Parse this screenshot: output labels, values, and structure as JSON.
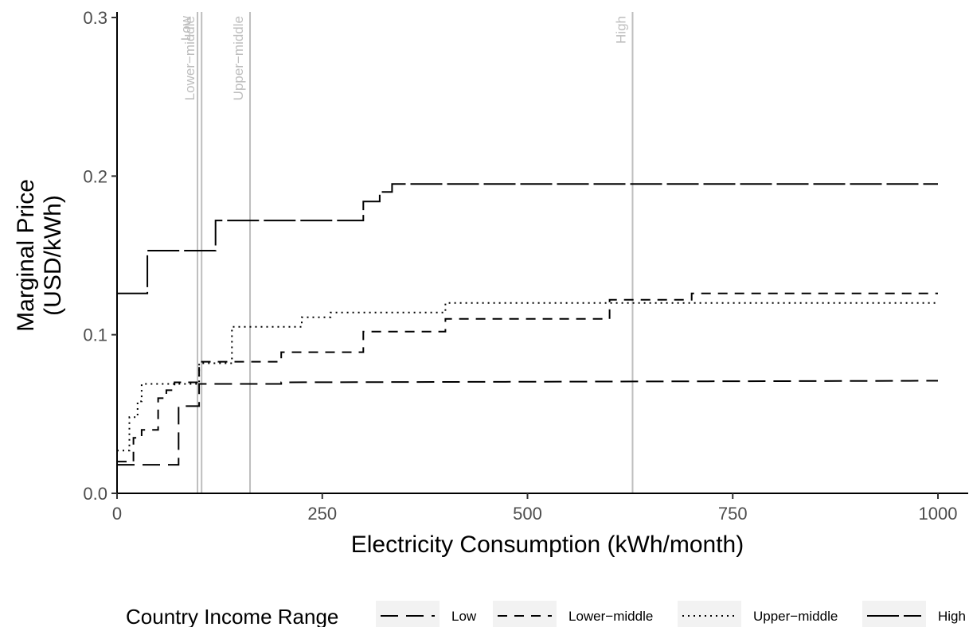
{
  "chart_data": {
    "type": "line",
    "step": true,
    "xlabel": "Electricity Consumption (kWh/month)",
    "ylabel_lines": [
      "Marginal Price",
      "(USD/kWh)"
    ],
    "xlim": [
      0,
      1000
    ],
    "ylim": [
      0,
      0.3
    ],
    "x_ticks": [
      0,
      250,
      500,
      750,
      1000
    ],
    "x_tick_labels": [
      "0",
      "250",
      "500",
      "750",
      "1000"
    ],
    "y_ticks": [
      0.0,
      0.1,
      0.2,
      0.3
    ],
    "y_tick_labels": [
      "0.0",
      "0.1",
      "0.2",
      "0.3"
    ],
    "grid": false,
    "legend": {
      "title": "Country Income Range",
      "position": "bottom"
    },
    "reference_lines": [
      {
        "label": "Low",
        "x": 98
      },
      {
        "label": "Lower−middle",
        "x": 103
      },
      {
        "label": "Upper−middle",
        "x": 162
      },
      {
        "label": "High",
        "x": 628
      }
    ],
    "series": [
      {
        "name": "Low",
        "dash": "long",
        "points": [
          [
            0,
            0.018
          ],
          [
            75,
            0.018
          ],
          [
            75,
            0.055
          ],
          [
            100,
            0.055
          ],
          [
            100,
            0.069
          ],
          [
            200,
            0.069
          ],
          [
            200,
            0.07
          ],
          [
            1000,
            0.071
          ]
        ]
      },
      {
        "name": "Lower−middle",
        "dash": "short",
        "points": [
          [
            0,
            0.02
          ],
          [
            20,
            0.02
          ],
          [
            20,
            0.035
          ],
          [
            30,
            0.035
          ],
          [
            30,
            0.04
          ],
          [
            50,
            0.04
          ],
          [
            50,
            0.06
          ],
          [
            60,
            0.06
          ],
          [
            60,
            0.065
          ],
          [
            70,
            0.065
          ],
          [
            70,
            0.07
          ],
          [
            100,
            0.07
          ],
          [
            100,
            0.083
          ],
          [
            200,
            0.083
          ],
          [
            200,
            0.089
          ],
          [
            300,
            0.089
          ],
          [
            300,
            0.102
          ],
          [
            400,
            0.102
          ],
          [
            400,
            0.11
          ],
          [
            600,
            0.11
          ],
          [
            600,
            0.122
          ],
          [
            700,
            0.122
          ],
          [
            700,
            0.126
          ],
          [
            1000,
            0.126
          ]
        ]
      },
      {
        "name": "Upper−middle",
        "dash": "dotted",
        "points": [
          [
            0,
            0.027
          ],
          [
            15,
            0.027
          ],
          [
            15,
            0.048
          ],
          [
            25,
            0.048
          ],
          [
            25,
            0.058
          ],
          [
            30,
            0.058
          ],
          [
            30,
            0.069
          ],
          [
            100,
            0.069
          ],
          [
            100,
            0.082
          ],
          [
            140,
            0.082
          ],
          [
            140,
            0.105
          ],
          [
            225,
            0.105
          ],
          [
            225,
            0.111
          ],
          [
            260,
            0.111
          ],
          [
            260,
            0.114
          ],
          [
            400,
            0.114
          ],
          [
            400,
            0.12
          ],
          [
            1000,
            0.12
          ]
        ]
      },
      {
        "name": "High",
        "dash": "longest",
        "points": [
          [
            0,
            0.126
          ],
          [
            37,
            0.126
          ],
          [
            37,
            0.153
          ],
          [
            120,
            0.153
          ],
          [
            120,
            0.172
          ],
          [
            300,
            0.172
          ],
          [
            300,
            0.184
          ],
          [
            320,
            0.184
          ],
          [
            320,
            0.19
          ],
          [
            335,
            0.19
          ],
          [
            335,
            0.195
          ],
          [
            1000,
            0.195
          ]
        ]
      }
    ]
  }
}
